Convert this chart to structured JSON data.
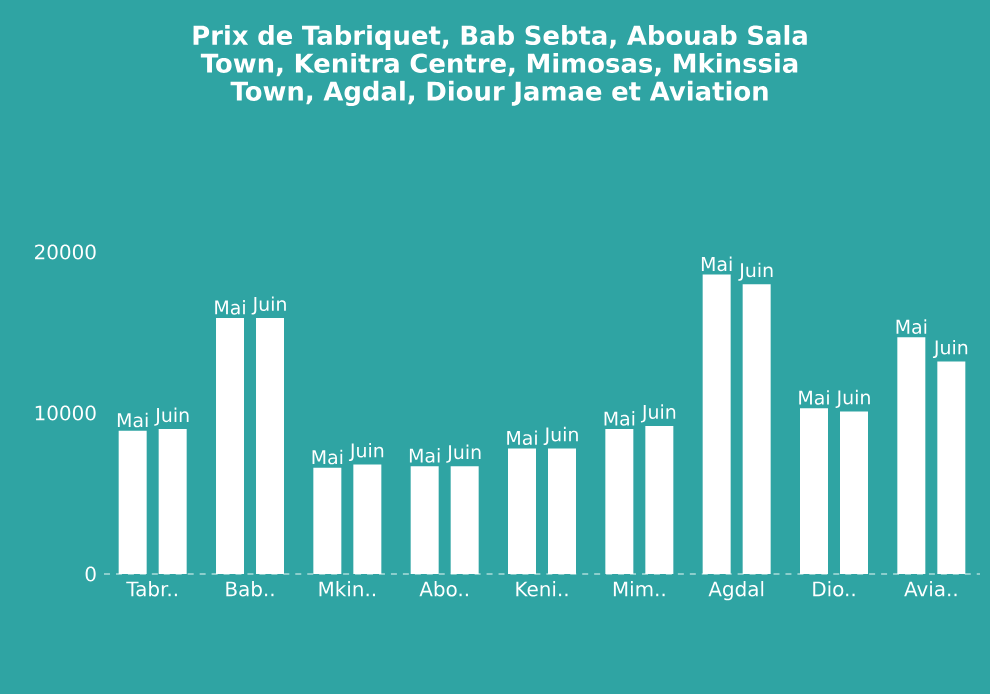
{
  "chart_data": {
    "type": "bar",
    "title": "Prix de Tabriquet, Bab Sebta, Abouab Sala Town, Kenitra Centre, Mimosas, Mkinssia Town, Agdal, Diour Jamae et Aviation",
    "categories": [
      "Tabr..",
      "Bab..",
      "Mkin..",
      "Abo..",
      "Keni..",
      "Mim..",
      "Agdal",
      "Dio..",
      "Avia.."
    ],
    "series": [
      {
        "name": "Mai",
        "color": "#ffffff",
        "values": [
          8900,
          15900,
          6600,
          6700,
          7800,
          9000,
          18600,
          10300,
          14700
        ]
      },
      {
        "name": "Juin",
        "color": "#ffffff",
        "values": [
          9000,
          15900,
          6800,
          6700,
          7800,
          9200,
          18000,
          10100,
          13200
        ]
      }
    ],
    "ylim": [
      0,
      20000
    ],
    "yticks": [
      0,
      10000,
      20000
    ],
    "grid": false,
    "legend": false
  }
}
